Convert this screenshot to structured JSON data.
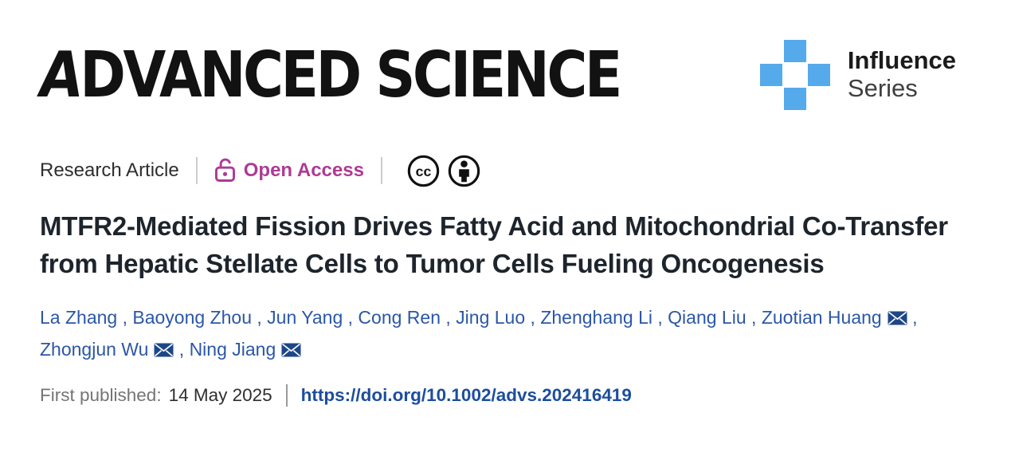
{
  "masthead": {
    "logo_first": "A",
    "logo_rest": "DVANCED SCIENCE",
    "series": {
      "line1": "Influence",
      "line2": "Series",
      "icon": "plus-squares-icon",
      "icon_color": "#55aaec"
    }
  },
  "meta": {
    "article_type": "Research Article",
    "open_access_label": "Open Access",
    "open_access_color": "#ae3a94",
    "license": {
      "cc_icon": "creative-commons-icon",
      "cc_text": "cc",
      "by_icon": "attribution-icon"
    }
  },
  "title": "MTFR2-Mediated Fission Drives Fatty Acid and Mitochondrial Co-Transfer from Hepatic Stellate Cells to Tumor Cells Fueling Oncogenesis",
  "authors": [
    {
      "name": "La Zhang",
      "has_email": false
    },
    {
      "name": "Baoyong Zhou",
      "has_email": false
    },
    {
      "name": "Jun Yang",
      "has_email": false
    },
    {
      "name": "Cong Ren",
      "has_email": false
    },
    {
      "name": "Jing Luo",
      "has_email": false
    },
    {
      "name": "Zhenghang Li",
      "has_email": false
    },
    {
      "name": "Qiang Liu",
      "has_email": false
    },
    {
      "name": "Zuotian Huang",
      "has_email": true
    },
    {
      "name": "Zhongjun Wu",
      "has_email": true
    },
    {
      "name": "Ning Jiang",
      "has_email": true
    }
  ],
  "published": {
    "label": "First published:",
    "date": "14 May 2025",
    "doi": "https://doi.org/10.1002/advs.202416419"
  },
  "colors": {
    "author_link": "#2b57a7",
    "envelope_fill": "#1d4689",
    "doi_link": "#1c4e9d",
    "badge_blue": "#55aaec",
    "open_access_magenta": "#ae3a94"
  }
}
